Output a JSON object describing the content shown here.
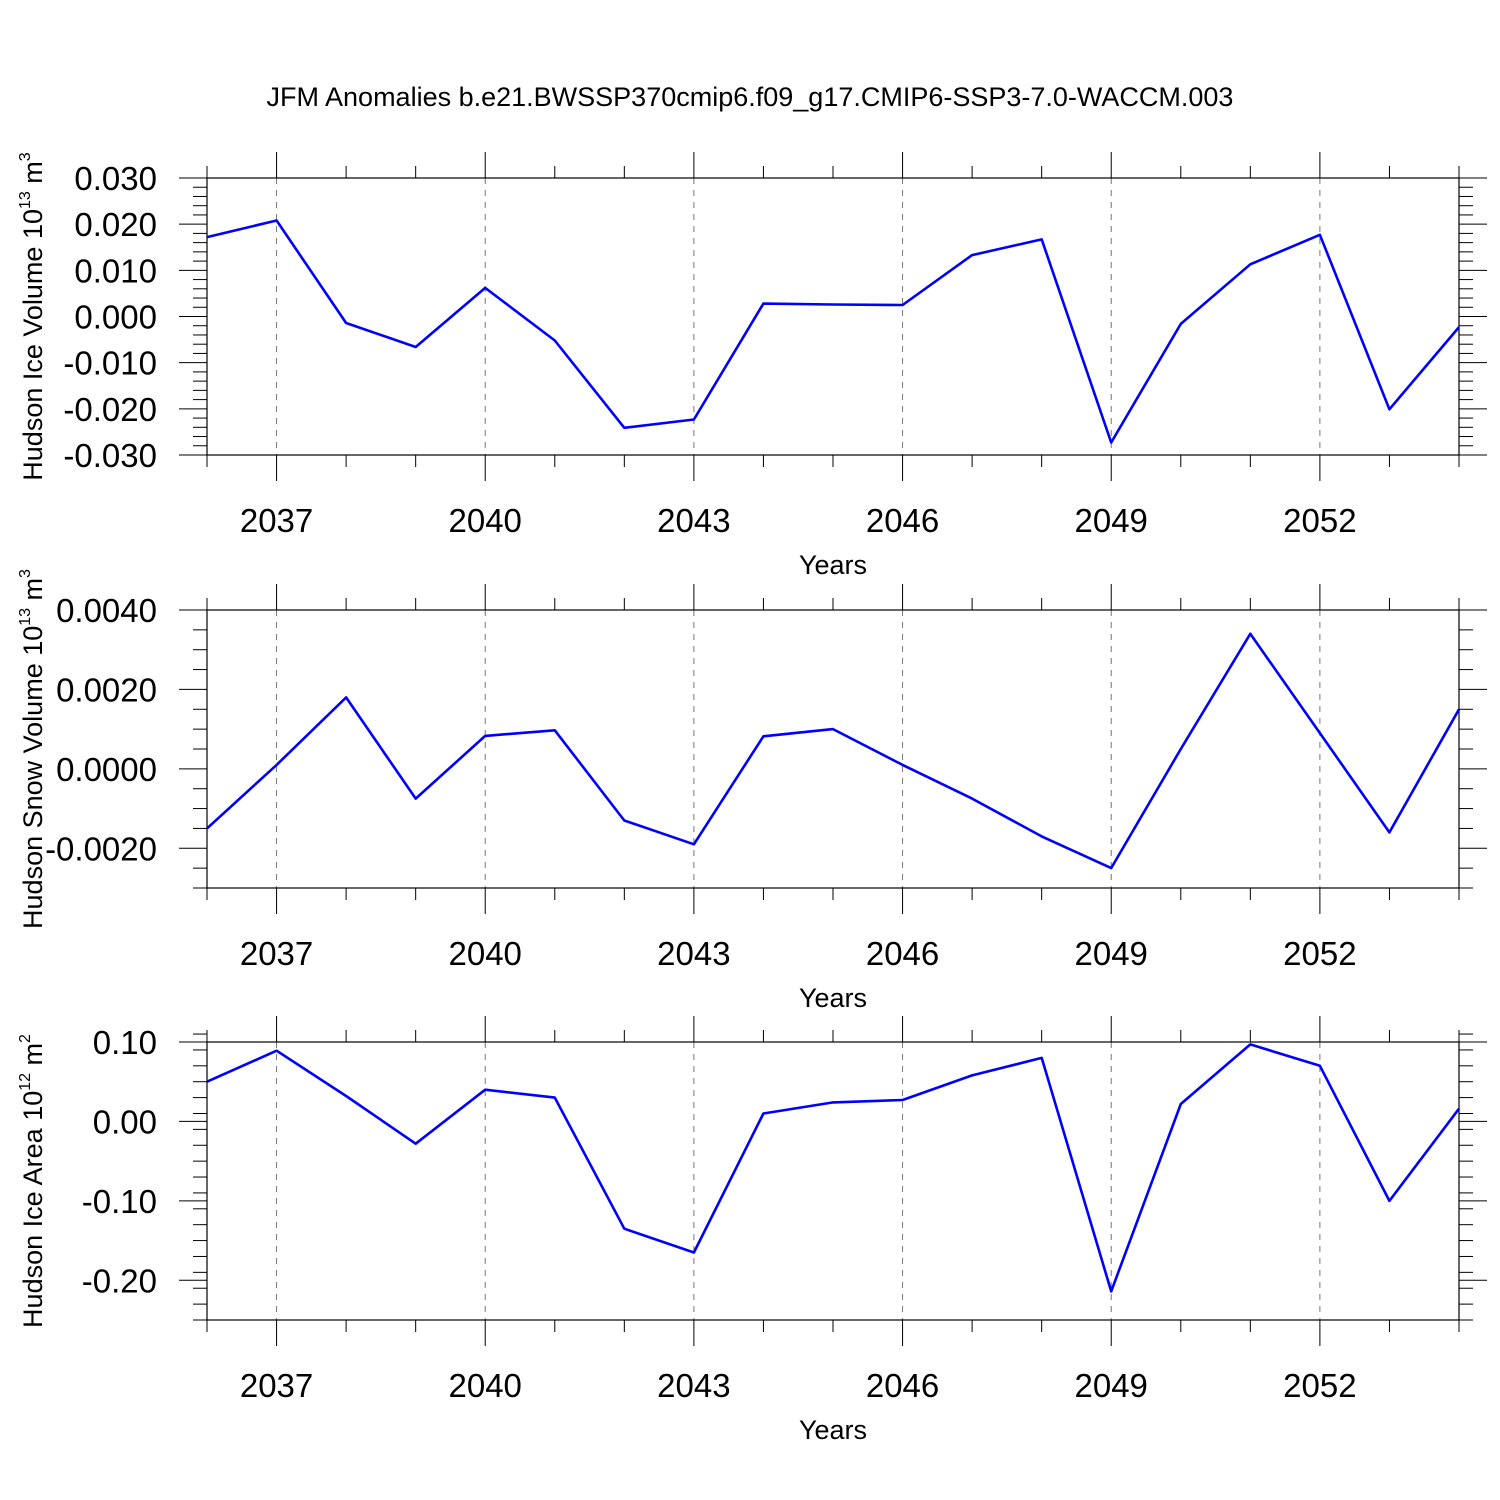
{
  "figure_title": "JFM Anomalies b.e21.BWSSP370cmip6.f09_g17.CMIP6-SSP3-7.0-WACCM.003",
  "colors": {
    "line": "#0000ff",
    "grid": "#777777",
    "axes": "#000000"
  },
  "chart_data": [
    {
      "type": "line",
      "title": "",
      "xlabel": "Years",
      "ylabel_main": "Hudson Ice Volume 10",
      "ylabel_exp": "13",
      "ylabel_unit": "m",
      "ylabel_unit_exp": "3",
      "xlim": [
        2036,
        2054
      ],
      "ylim": [
        -0.03,
        0.03
      ],
      "xticks": [
        2037,
        2040,
        2043,
        2046,
        2049,
        2052
      ],
      "yticks": [
        0.03,
        0.02,
        0.01,
        0.0,
        -0.01,
        -0.02,
        -0.03
      ],
      "ytick_labels": [
        "0.030",
        "0.020",
        "0.010",
        "0.000",
        "-0.010",
        "-0.020",
        "-0.030"
      ],
      "yminor_step": 0.002,
      "grid": "vertical dashed at major x ticks",
      "x": [
        2036,
        2037,
        2038,
        2039,
        2040,
        2041,
        2042,
        2043,
        2044,
        2045,
        2046,
        2047,
        2048,
        2049,
        2050,
        2051,
        2052,
        2053,
        2054
      ],
      "series": [
        {
          "values": [
            0.0172,
            0.0208,
            -0.0014,
            -0.0066,
            0.0062,
            -0.0052,
            -0.0241,
            -0.0223,
            0.0028,
            0.0026,
            0.0025,
            0.0133,
            0.0167,
            -0.0273,
            -0.0016,
            0.0113,
            0.0177,
            -0.0201,
            -0.0023
          ]
        }
      ]
    },
    {
      "type": "line",
      "title": "",
      "xlabel": "Years",
      "ylabel_main": "Hudson Snow Volume 10",
      "ylabel_exp": "13",
      "ylabel_unit": "m",
      "ylabel_unit_exp": "3",
      "xlim": [
        2036,
        2054
      ],
      "ylim": [
        -0.003,
        0.004
      ],
      "xticks": [
        2037,
        2040,
        2043,
        2046,
        2049,
        2052
      ],
      "yticks": [
        0.004,
        0.002,
        0.0,
        -0.002
      ],
      "ytick_labels": [
        "0.0040",
        "0.0020",
        "0.0000",
        "-0.0020"
      ],
      "yminor_step": 0.0005,
      "grid": "vertical dashed at major x ticks",
      "x": [
        2036,
        2037,
        2038,
        2039,
        2040,
        2041,
        2042,
        2043,
        2044,
        2045,
        2046,
        2047,
        2048,
        2049,
        2050,
        2051,
        2052,
        2053,
        2054
      ],
      "series": [
        {
          "values": [
            -0.0015,
            0.0001,
            0.0018,
            -0.00075,
            0.00083,
            0.00097,
            -0.0013,
            -0.0019,
            0.00082,
            0.001,
            0.0001,
            -0.00075,
            -0.0017,
            -0.0025,
            0.0005,
            0.0034,
            0.0009,
            -0.0016,
            0.0015
          ]
        }
      ]
    },
    {
      "type": "line",
      "title": "",
      "xlabel": "Years",
      "ylabel_main": "Hudson Ice Area 10",
      "ylabel_exp": "12",
      "ylabel_unit": "m",
      "ylabel_unit_exp": "2",
      "xlim": [
        2036,
        2054
      ],
      "ylim": [
        -0.25,
        0.1
      ],
      "xticks": [
        2037,
        2040,
        2043,
        2046,
        2049,
        2052
      ],
      "yticks": [
        0.1,
        0.0,
        -0.1,
        -0.2
      ],
      "ytick_labels": [
        "0.10",
        "0.00",
        "-0.10",
        "-0.20"
      ],
      "yminor_step": 0.02,
      "grid": "vertical dashed at major x ticks",
      "x": [
        2036,
        2037,
        2038,
        2039,
        2040,
        2041,
        2042,
        2043,
        2044,
        2045,
        2046,
        2047,
        2048,
        2049,
        2050,
        2051,
        2052,
        2053,
        2054
      ],
      "series": [
        {
          "values": [
            0.05,
            0.089,
            0.032,
            -0.028,
            0.04,
            0.03,
            -0.135,
            -0.165,
            0.01,
            0.024,
            0.027,
            0.058,
            0.08,
            -0.214,
            0.022,
            0.097,
            0.07,
            -0.1,
            0.016
          ]
        }
      ]
    }
  ]
}
